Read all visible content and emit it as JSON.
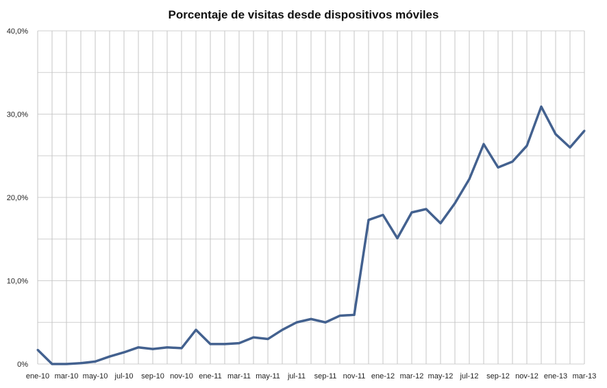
{
  "chart_data": {
    "type": "line",
    "title": "Porcentaje de visitas desde dispositivos móviles",
    "xlabel": "",
    "ylabel": "",
    "ylim": [
      0,
      40
    ],
    "yticks": [
      0,
      10,
      20,
      30,
      40
    ],
    "ytick_labels": [
      "0%",
      "10,0%",
      "20,0%",
      "30,0%",
      "40,0%"
    ],
    "grid": true,
    "line_color": "#43618f",
    "x": [
      "ene-10",
      "feb-10",
      "mar-10",
      "abr-10",
      "may-10",
      "jun-10",
      "jul-10",
      "ago-10",
      "sep-10",
      "oct-10",
      "nov-10",
      "dic-10",
      "ene-11",
      "feb-11",
      "mar-11",
      "abr-11",
      "may-11",
      "jun-11",
      "jul-11",
      "ago-11",
      "sep-11",
      "oct-11",
      "nov-11",
      "dic-11",
      "ene-12",
      "feb-12",
      "mar-12",
      "abr-12",
      "may-12",
      "jun-12",
      "jul-12",
      "ago-12",
      "sep-12",
      "oct-12",
      "nov-12",
      "dic-12",
      "ene-13",
      "feb-13",
      "mar-13"
    ],
    "xtick_labels": [
      "ene-10",
      "mar-10",
      "may-10",
      "jul-10",
      "sep-10",
      "nov-10",
      "ene-11",
      "mar-11",
      "may-11",
      "jul-11",
      "sep-11",
      "nov-11",
      "ene-12",
      "mar-12",
      "may-12",
      "jul-12",
      "sep-12",
      "nov-12",
      "ene-13",
      "mar-13"
    ],
    "series": [
      {
        "name": "Porcentaje de visitas",
        "values": [
          1.7,
          0,
          0,
          0.1,
          0.3,
          0.9,
          1.4,
          2.0,
          1.8,
          2.0,
          1.9,
          4.1,
          2.4,
          2.4,
          2.5,
          3.2,
          3.0,
          4.1,
          5.0,
          5.4,
          5.0,
          5.8,
          5.9,
          17.3,
          17.9,
          15.1,
          18.2,
          18.6,
          16.9,
          19.3,
          22.2,
          26.4,
          23.6,
          24.3,
          26.2,
          30.9,
          27.6,
          26.0,
          28.0
        ]
      }
    ]
  }
}
